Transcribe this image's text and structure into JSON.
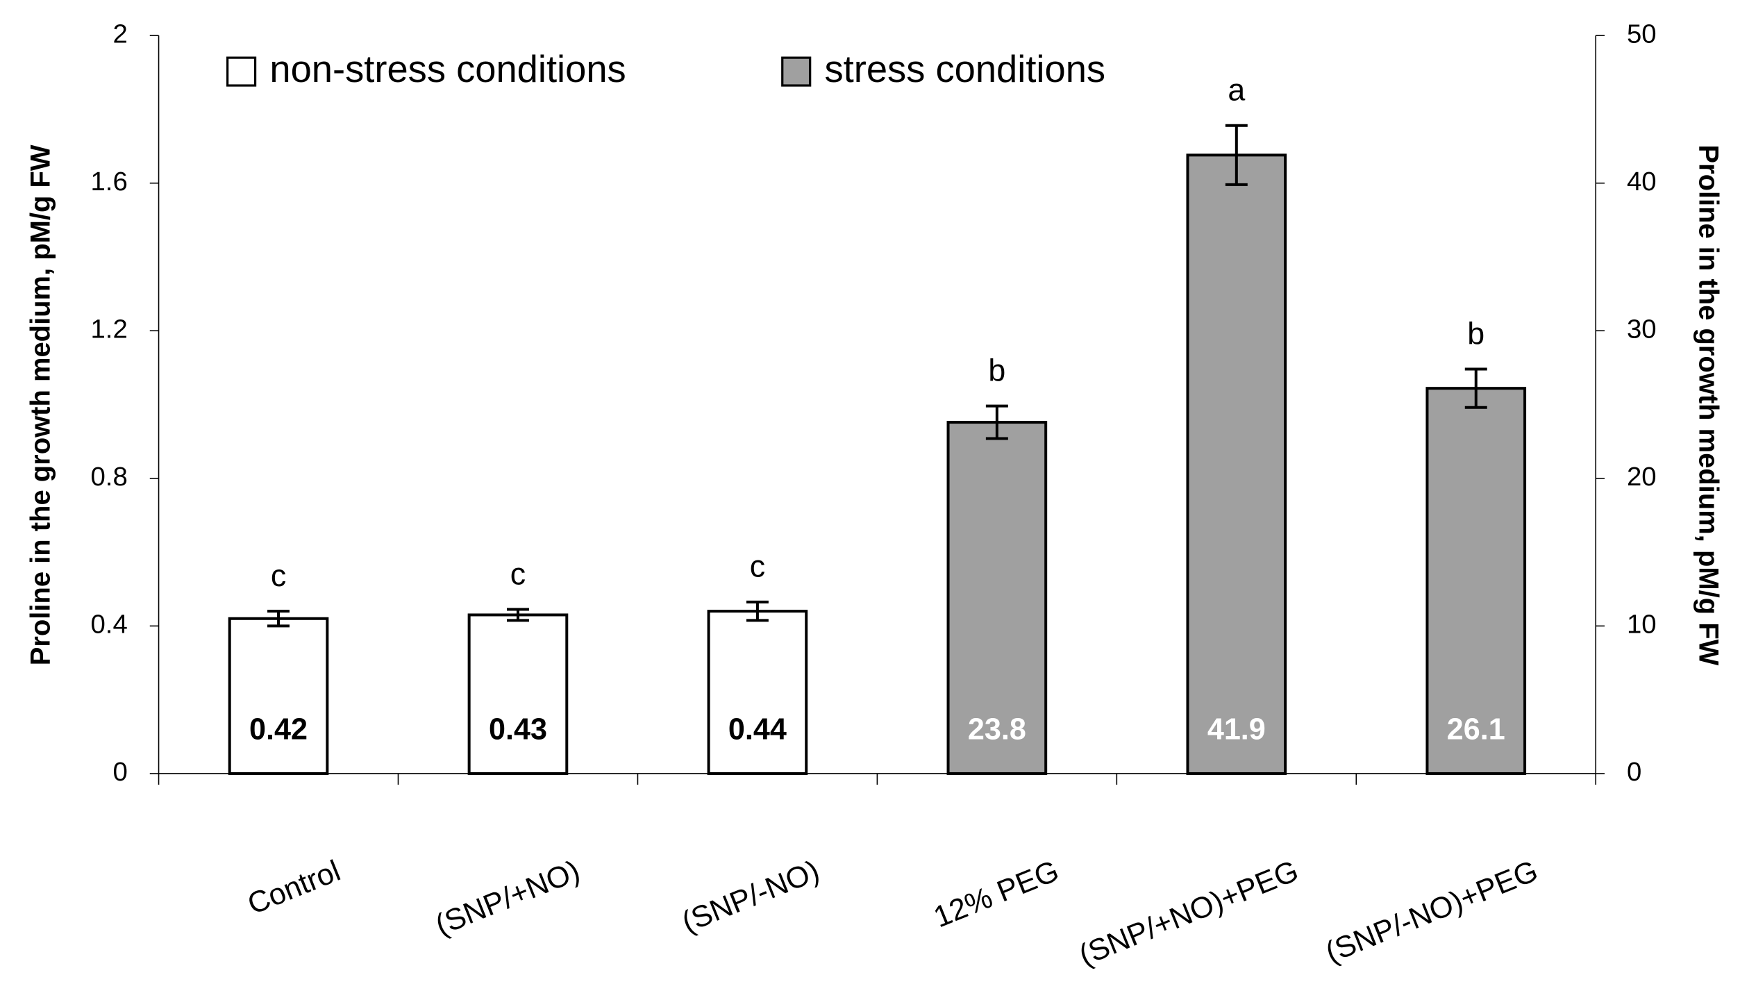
{
  "chart_data": {
    "type": "bar",
    "categories": [
      "Control",
      "(SNP/+NO)",
      "(SNP/-NO)",
      "12%  PEG",
      "(SNP/+NO)+PEG",
      "(SNP/-NO)+PEG"
    ],
    "series": [
      {
        "name": "non-stress conditions",
        "color": "#ffffff",
        "axis": "y",
        "values": [
          0.42,
          0.43,
          0.44,
          null,
          null,
          null
        ],
        "errors": [
          0.02,
          0.015,
          0.025,
          null,
          null,
          null
        ]
      },
      {
        "name": "stress conditions",
        "color": "#a0a0a0",
        "axis": "y2",
        "values": [
          null,
          null,
          null,
          23.8,
          41.9,
          26.1
        ],
        "errors": [
          null,
          null,
          null,
          1.1,
          2.0,
          1.3
        ]
      }
    ],
    "letters": [
      "c",
      "c",
      "c",
      "b",
      "a",
      "b"
    ],
    "ylabel": "Proline in the growth medium, pM/g FW",
    "y2label": "Proline in the growth medium, pM/g FW",
    "ylim": [
      0,
      2
    ],
    "yticks": [
      0,
      0.4,
      0.8,
      1.2,
      1.6,
      2
    ],
    "y2lim": [
      0,
      50
    ],
    "y2ticks": [
      0,
      10,
      20,
      30,
      40,
      50
    ],
    "legend": "top"
  }
}
